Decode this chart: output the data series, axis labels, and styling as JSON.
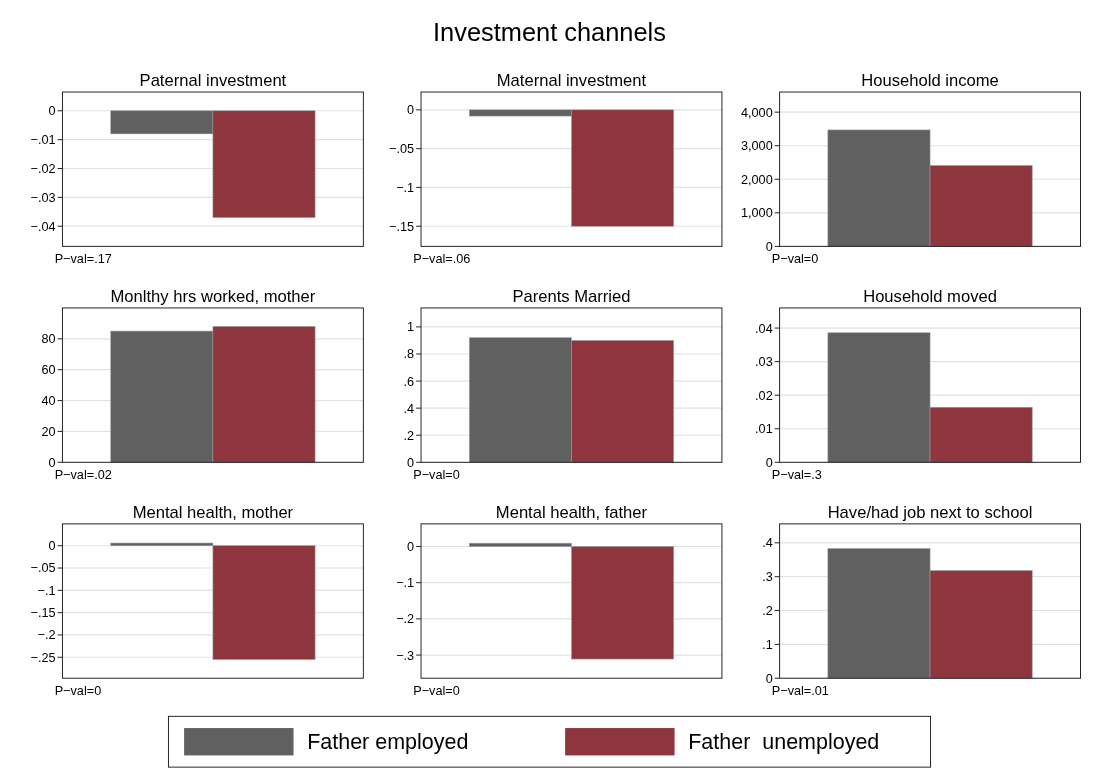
{
  "chart_data": [
    {
      "type": "other",
      "title": "Investment channels"
    },
    {
      "type": "bar",
      "title": "Paternal investment",
      "categories": [
        null
      ],
      "legend": "bottom",
      "grid": "y",
      "ylim": [
        -0.047,
        0.0065
      ],
      "yticks": [
        {
          "value": -0.04,
          "label": "−.04"
        },
        {
          "value": -0.03,
          "label": "−.03"
        },
        {
          "value": -0.02,
          "label": "−.02"
        },
        {
          "value": -0.01,
          "label": "−.01"
        },
        0
      ],
      "annotations": [
        "P−val=.17"
      ],
      "series": [
        {
          "name": "Father employed",
          "color": "#606060",
          "values": [
            -0.008
          ]
        },
        {
          "name": "Father  unemployed",
          "color": "#8e353e",
          "values": [
            -0.037
          ]
        }
      ]
    },
    {
      "type": "bar",
      "title": "Maternal investment",
      "categories": [
        null
      ],
      "grid": "y",
      "ylim": [
        -0.176,
        0.023
      ],
      "yticks": [
        {
          "value": -0.15,
          "label": "−.15"
        },
        {
          "value": -0.1,
          "label": "−.1"
        },
        {
          "value": -0.05,
          "label": "−.05"
        },
        0
      ],
      "annotations": [
        "P−val=.06"
      ],
      "series": [
        {
          "color": "#606060",
          "values": [
            -0.008
          ]
        },
        {
          "color": "#8e353e",
          "values": [
            -0.15
          ]
        }
      ]
    },
    {
      "type": "bar",
      "title": "Household income",
      "categories": [
        null
      ],
      "grid": "y",
      "ylim": [
        0,
        4600
      ],
      "yticks": [
        0,
        {
          "value": 1000,
          "label": "1,000"
        },
        {
          "value": 2000,
          "label": "2,000"
        },
        {
          "value": 3000,
          "label": "3,000"
        },
        {
          "value": 4000,
          "label": "4,000"
        }
      ],
      "annotations": [
        "P−val=0"
      ],
      "series": [
        {
          "color": "#606060",
          "values": [
            3470
          ]
        },
        {
          "color": "#8e353e",
          "values": [
            2410
          ]
        }
      ]
    },
    {
      "type": "bar",
      "title": "Monlthy hrs worked, mother",
      "categories": [
        null
      ],
      "grid": "y",
      "ylim": [
        0,
        100
      ],
      "yticks": [
        0,
        20,
        40,
        60,
        80
      ],
      "annotations": [
        "P−val=.02"
      ],
      "series": [
        {
          "color": "#606060",
          "values": [
            85
          ]
        },
        {
          "color": "#8e353e",
          "values": [
            88
          ]
        }
      ]
    },
    {
      "type": "bar",
      "title": "Parents Married",
      "categories": [
        null
      ],
      "grid": "y",
      "ylim": [
        0,
        1.14
      ],
      "yticks": [
        0,
        {
          "value": 0.2,
          "label": ".2"
        },
        {
          "value": 0.4,
          "label": ".4"
        },
        {
          "value": 0.6,
          "label": ".6"
        },
        {
          "value": 0.8,
          "label": ".8"
        },
        1
      ],
      "annotations": [
        "P−val=0"
      ],
      "series": [
        {
          "color": "#606060",
          "values": [
            0.92
          ]
        },
        {
          "color": "#8e353e",
          "values": [
            0.9
          ]
        }
      ]
    },
    {
      "type": "bar",
      "title": "Household moved",
      "categories": [
        null
      ],
      "grid": "y",
      "ylim": [
        0,
        0.046
      ],
      "yticks": [
        0,
        {
          "value": 0.01,
          "label": ".01"
        },
        {
          "value": 0.02,
          "label": ".02"
        },
        {
          "value": 0.03,
          "label": ".03"
        },
        {
          "value": 0.04,
          "label": ".04"
        }
      ],
      "annotations": [
        "P−val=.3"
      ],
      "series": [
        {
          "color": "#606060",
          "values": [
            0.0386
          ]
        },
        {
          "color": "#8e353e",
          "values": [
            0.0164
          ]
        }
      ]
    },
    {
      "type": "bar",
      "title": "Mental health, mother",
      "categories": [
        null
      ],
      "grid": "y",
      "ylim": [
        -0.297,
        0.049
      ],
      "yticks": [
        {
          "value": -0.25,
          "label": "−.25"
        },
        {
          "value": -0.2,
          "label": "−.2"
        },
        {
          "value": -0.15,
          "label": "−.15"
        },
        {
          "value": -0.1,
          "label": "−.1"
        },
        {
          "value": -0.05,
          "label": "−.05"
        },
        0
      ],
      "annotations": [
        "P−val=0"
      ],
      "series": [
        {
          "color": "#606060",
          "values": [
            0.006
          ]
        },
        {
          "color": "#8e353e",
          "values": [
            -0.255
          ]
        }
      ]
    },
    {
      "type": "bar",
      "title": "Mental health, father",
      "categories": [
        null
      ],
      "grid": "y",
      "ylim": [
        -0.364,
        0.0625
      ],
      "yticks": [
        {
          "value": -0.3,
          "label": "−.3"
        },
        {
          "value": -0.2,
          "label": "−.2"
        },
        {
          "value": -0.1,
          "label": "−.1"
        },
        0
      ],
      "annotations": [
        "P−val=0"
      ],
      "series": [
        {
          "color": "#606060",
          "values": [
            0.009
          ]
        },
        {
          "color": "#8e353e",
          "values": [
            -0.311
          ]
        }
      ]
    },
    {
      "type": "bar",
      "title": "Have/had job next to school",
      "categories": [
        null
      ],
      "grid": "y",
      "ylim": [
        0,
        0.456
      ],
      "yticks": [
        0,
        {
          "value": 0.1,
          "label": ".1"
        },
        {
          "value": 0.2,
          "label": ".2"
        },
        {
          "value": 0.3,
          "label": ".3"
        },
        {
          "value": 0.4,
          "label": ".4"
        }
      ],
      "annotations": [
        "P−val=.01"
      ],
      "series": [
        {
          "color": "#606060",
          "values": [
            0.383
          ]
        },
        {
          "color": "#8e353e",
          "values": [
            0.318
          ]
        }
      ]
    }
  ]
}
